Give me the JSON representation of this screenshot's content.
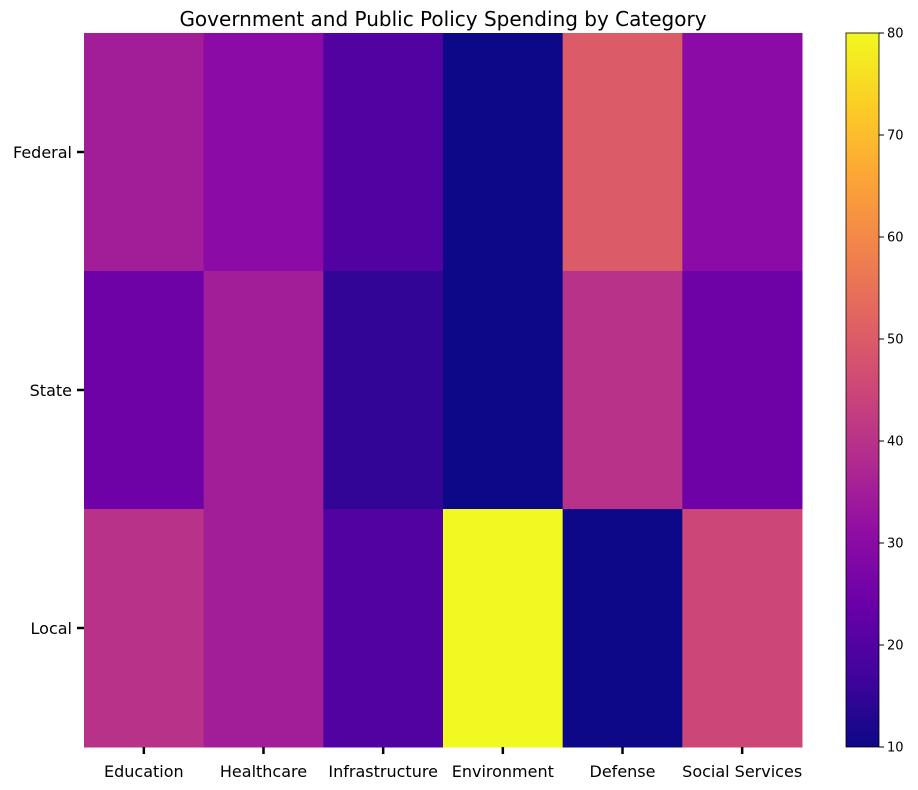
{
  "chart_data": {
    "type": "heatmap",
    "title": "Government and Public Policy Spending by Category",
    "xlabel": "",
    "ylabel": "",
    "columns": [
      "Education",
      "Healthcare",
      "Infrastructure",
      "Environment",
      "Defense",
      "Social Services"
    ],
    "rows": [
      "Federal",
      "State",
      "Local"
    ],
    "values": [
      [
        35,
        30,
        20,
        10,
        50,
        30
      ],
      [
        25,
        35,
        15,
        10,
        40,
        25
      ],
      [
        40,
        35,
        20,
        80,
        10,
        45
      ]
    ],
    "colormap": "plasma",
    "color_range": [
      10,
      80
    ],
    "colorbar_ticks": [
      10,
      20,
      30,
      40,
      50,
      60,
      70,
      80
    ],
    "grid": false,
    "colorbar_position": "right"
  }
}
